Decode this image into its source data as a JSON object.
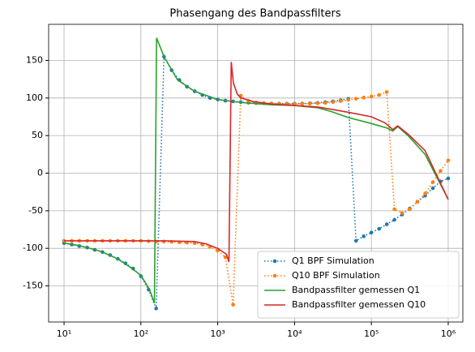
{
  "chart_data": {
    "type": "line",
    "title": "Phasengang des Bandpassfilters",
    "xscale": "log",
    "grid": true,
    "legend": "lower right",
    "xlim": [
      6.3,
      1550000
    ],
    "ylim": [
      -198,
      198
    ],
    "xticks": [
      {
        "value": 10,
        "label": "10¹"
      },
      {
        "value": 100,
        "label": "10²"
      },
      {
        "value": 1000,
        "label": "10³"
      },
      {
        "value": 10000,
        "label": "10⁴"
      },
      {
        "value": 100000,
        "label": "10⁵"
      },
      {
        "value": 1000000,
        "label": "10⁶"
      }
    ],
    "yticks": [
      -150,
      -100,
      -50,
      0,
      50,
      100,
      150
    ],
    "series": [
      {
        "name": "Q1 BPF Simulation",
        "color": "#1f77b4",
        "style": "dotted-markers",
        "x": [
          10,
          12.6,
          15.8,
          20,
          25.1,
          31.6,
          39.8,
          50.1,
          63.1,
          79.4,
          100,
          126,
          158,
          200,
          251,
          316,
          398,
          501,
          631,
          794,
          1000,
          1259,
          1585,
          1995,
          2512,
          3162,
          3981,
          5012,
          6310,
          7943,
          10000,
          12589,
          15849,
          19953,
          25119,
          31623,
          39811,
          50119,
          63096,
          79433,
          100000,
          125893,
          158489,
          199526,
          251189,
          316228,
          398107,
          501187,
          630957,
          794328,
          1000000
        ],
        "values": [
          -93,
          -95,
          -97,
          -99,
          -102,
          -105,
          -109,
          -114,
          -120,
          -127,
          -137,
          -155,
          -180,
          155,
          137,
          124,
          115,
          109,
          104,
          100,
          98,
          96.5,
          95.5,
          94.5,
          93.8,
          93.3,
          93,
          92.8,
          92.6,
          92.5,
          92.5,
          92.6,
          93,
          93.5,
          94.5,
          95.5,
          97,
          99,
          -90,
          -84,
          -79,
          -74,
          -68,
          -62,
          -55,
          -47,
          -38,
          -30,
          -20,
          -11,
          -7
        ]
      },
      {
        "name": "Q10 BPF Simulation",
        "color": "#ff7f0e",
        "style": "dotted-markers",
        "x": [
          10,
          12.6,
          15.8,
          20,
          25.1,
          31.6,
          39.8,
          50.1,
          63.1,
          79.4,
          100,
          126,
          158,
          200,
          251,
          316,
          398,
          501,
          631,
          794,
          1000,
          1259,
          1585,
          1995,
          2512,
          3162,
          3981,
          5012,
          6310,
          7943,
          10000,
          12589,
          15849,
          19953,
          25119,
          31623,
          39811,
          50119,
          63096,
          79433,
          100000,
          125893,
          158489,
          199526,
          251189,
          316228,
          398107,
          501187,
          630957,
          794328,
          1000000
        ],
        "values": [
          -90,
          -90,
          -90,
          -90,
          -90,
          -90,
          -90,
          -90,
          -90,
          -90,
          -90,
          -90.5,
          -91,
          -91,
          -91.5,
          -92,
          -92.5,
          -93,
          -95,
          -98,
          -103,
          -112,
          -175,
          103,
          96,
          94,
          93,
          92.5,
          92.2,
          92,
          92,
          92.2,
          92.5,
          93,
          93.5,
          94.5,
          96,
          97.5,
          99,
          100.5,
          102,
          104,
          108,
          -48,
          -53,
          -48,
          -38,
          -27,
          -12,
          3,
          17
        ]
      },
      {
        "name": "Bandpassfilter gemessen Q1",
        "color": "#2ca02c",
        "style": "solid",
        "x": [
          10,
          15,
          20,
          30,
          50,
          70,
          100,
          130,
          150,
          160,
          200,
          300,
          500,
          1000,
          2000,
          5000,
          10000,
          20000,
          30000,
          50000,
          100000,
          160000,
          190000,
          220000,
          300000,
          500000,
          1000000
        ],
        "values": [
          -93,
          -96,
          -99,
          -104,
          -114,
          -124,
          -136,
          -155,
          -173,
          180,
          155,
          124,
          109,
          98,
          94,
          91,
          90,
          87,
          82,
          74,
          66,
          60,
          56,
          62,
          50,
          25,
          -35
        ]
      },
      {
        "name": "Bandpassfilter gemessen Q10",
        "color": "#d62728",
        "style": "solid",
        "x": [
          10,
          20,
          50,
          100,
          200,
          500,
          700,
          1000,
          1300,
          1400,
          1500,
          1600,
          1800,
          2000,
          3000,
          5000,
          10000,
          20000,
          30000,
          50000,
          100000,
          150000,
          190000,
          220000,
          300000,
          500000,
          1000000
        ],
        "values": [
          -90,
          -90,
          -90,
          -90,
          -90,
          -91,
          -94,
          -100,
          -108,
          -118,
          148,
          120,
          105,
          100,
          95,
          92,
          90,
          88,
          85,
          81,
          75,
          67,
          58,
          63,
          52,
          30,
          -35
        ]
      }
    ]
  }
}
